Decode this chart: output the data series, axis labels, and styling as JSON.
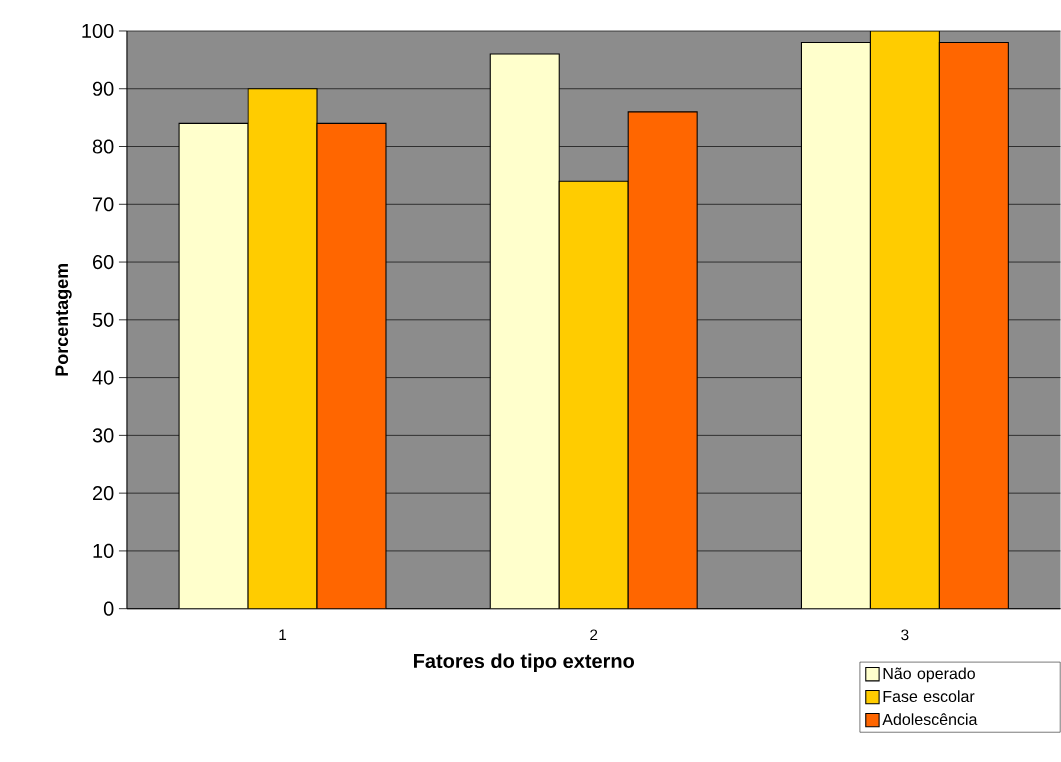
{
  "chart_data": {
    "type": "bar",
    "xlabel": "Fatores do tipo externo",
    "ylabel": "Porcentagem",
    "categories": [
      "1",
      "2",
      "3"
    ],
    "series": [
      {
        "name": "Não operado",
        "color": "#ffffcc",
        "values": [
          84,
          96,
          98
        ]
      },
      {
        "name": "Fase escolar",
        "color": "#ffcc00",
        "values": [
          90,
          74,
          100
        ]
      },
      {
        "name": "Adolescência",
        "color": "#ff6600",
        "values": [
          84,
          86,
          98
        ]
      }
    ],
    "ylim": [
      0,
      100
    ],
    "yticks": [
      0,
      10,
      20,
      30,
      40,
      50,
      60,
      70,
      80,
      90,
      100
    ],
    "grid": "y",
    "legend": "bottom right"
  }
}
